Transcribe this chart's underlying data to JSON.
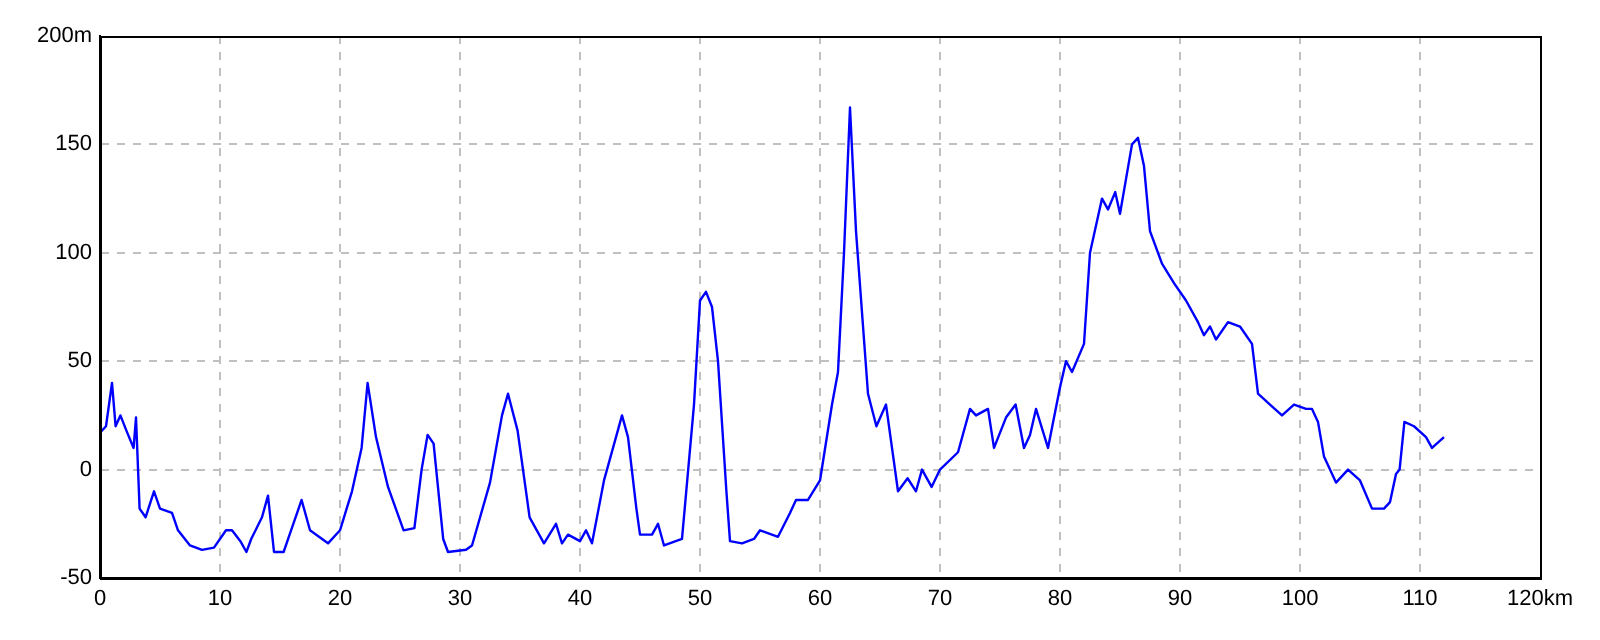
{
  "chart_data": {
    "type": "line",
    "x": [
      0,
      0.5,
      1,
      1.3,
      1.7,
      2.2,
      2.8,
      3,
      3.3,
      3.8,
      4.5,
      5,
      6,
      6.5,
      7.5,
      8.5,
      9.5,
      10.5,
      11,
      11.7,
      12.2,
      12.6,
      13.5,
      14,
      14.5,
      15.3,
      15.8,
      16.8,
      17.5,
      19,
      20,
      21,
      21.8,
      22.3,
      23,
      24,
      25.3,
      26.2,
      26.8,
      27.3,
      27.8,
      28.6,
      29,
      30.5,
      31,
      32.5,
      33.5,
      34,
      34.8,
      35.8,
      37,
      38,
      38.5,
      39,
      40,
      40.5,
      41,
      42,
      43,
      43.5,
      44,
      44.7,
      45,
      46,
      46.5,
      47,
      48.5,
      49.5,
      50,
      50.5,
      51,
      51.5,
      52.2,
      52.5,
      53.5,
      54.5,
      55,
      56.5,
      57.5,
      58,
      59,
      60,
      61,
      61.5,
      62,
      62.5,
      63,
      64,
      64.7,
      65.5,
      66.5,
      67.3,
      68,
      68.5,
      69.3,
      70,
      71.5,
      72.5,
      73,
      74,
      74.5,
      75.5,
      76.3,
      77,
      77.5,
      78,
      79,
      80,
      80.5,
      81,
      82,
      82.5,
      83.5,
      84,
      84.6,
      85,
      86,
      86.5,
      87,
      87.5,
      88.5,
      89.5,
      90.5,
      91.5,
      92,
      92.5,
      93,
      94,
      95,
      96,
      96.5,
      97.5,
      98.5,
      99.5,
      100.5,
      101,
      101.5,
      102,
      103,
      104,
      105,
      106,
      107,
      107.5,
      108,
      108.3,
      108.7,
      109.5,
      110.5,
      111,
      112
    ],
    "series": [
      {
        "color": "#0000ff",
        "values": [
          17,
          20,
          40,
          20,
          25,
          18,
          10,
          24,
          -18,
          -22,
          -10,
          -18,
          -20,
          -28,
          -35,
          -37,
          -36,
          -28,
          -28,
          -33,
          -38,
          -32,
          -22,
          -12,
          -38,
          -38,
          -30,
          -14,
          -28,
          -34,
          -28,
          -10,
          10,
          40,
          15,
          -8,
          -28,
          -27,
          0,
          16,
          12,
          -32,
          -38,
          -37,
          -35,
          -6,
          25,
          35,
          18,
          -22,
          -34,
          -25,
          -34,
          -30,
          -33,
          -28,
          -34,
          -5,
          15,
          25,
          15,
          -18,
          -30,
          -30,
          -25,
          -35,
          -32,
          30,
          78,
          82,
          75,
          50,
          -10,
          -33,
          -34,
          -32,
          -28,
          -31,
          -20,
          -14,
          -14,
          -5,
          30,
          45,
          100,
          167,
          110,
          35,
          20,
          30,
          -10,
          -4,
          -10,
          0,
          -8,
          0,
          8,
          28,
          25,
          28,
          10,
          24,
          30,
          10,
          16,
          28,
          10,
          38,
          50,
          45,
          58,
          100,
          125,
          120,
          128,
          118,
          150,
          153,
          140,
          110,
          95,
          86,
          78,
          68,
          62,
          66,
          60,
          68,
          66,
          58,
          35,
          30,
          25,
          30,
          28,
          28,
          22,
          6,
          -6,
          0,
          -5,
          -18,
          -18,
          -15,
          -2,
          0,
          22,
          20,
          15,
          10,
          15
        ]
      }
    ],
    "xlim": [
      0,
      120
    ],
    "xticks": [
      0,
      10,
      20,
      30,
      40,
      50,
      60,
      70,
      80,
      90,
      100,
      110,
      {
        "value": 120,
        "label": "120km"
      }
    ],
    "ylim": [
      -50,
      200
    ],
    "yticks": [
      -50,
      0,
      50,
      100,
      150,
      {
        "value": 200,
        "label": "200m"
      }
    ],
    "grid": true,
    "marker": "none",
    "line_style": "solid"
  }
}
